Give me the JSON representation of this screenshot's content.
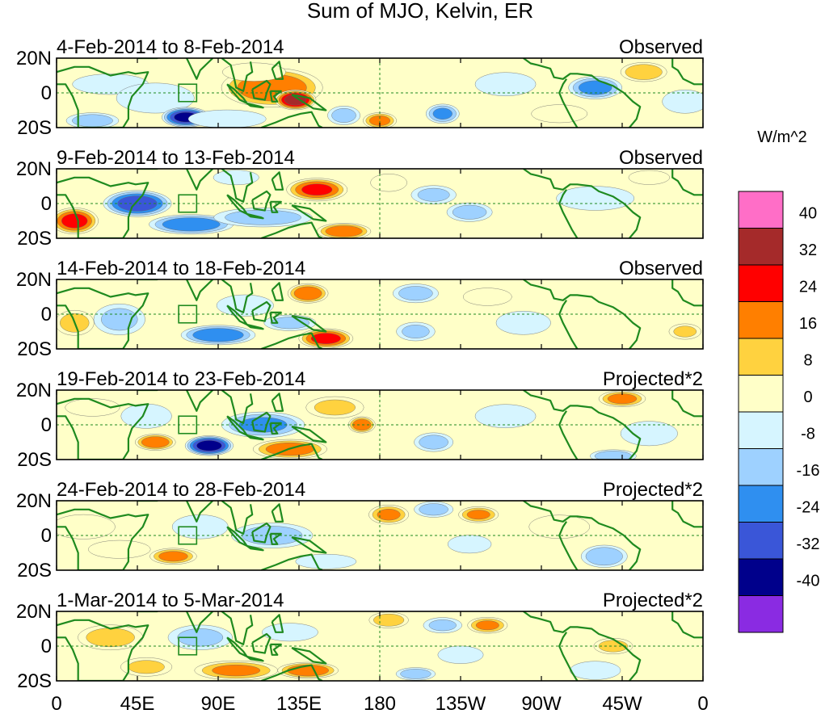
{
  "chart_data": {
    "type": "heatmap",
    "title": "Sum of MJO, Kelvin, ER",
    "units": "W/m^2",
    "x_ticks": [
      "0",
      "45E",
      "90E",
      "135E",
      "180",
      "135W",
      "90W",
      "45W",
      "0"
    ],
    "y_ticks": [
      "20N",
      "0",
      "20S"
    ],
    "lon_range": [
      0,
      360
    ],
    "lat_range": [
      -20,
      20
    ],
    "grid": false,
    "legend_position": "right",
    "colorbar": {
      "levels": [
        "40",
        "32",
        "24",
        "16",
        "8",
        "0",
        "-8",
        "-16",
        "-24",
        "-32",
        "-40"
      ],
      "colors": [
        "#ff6ec7",
        "#a52a2a",
        "#ff0000",
        "#ff7f00",
        "#ffd23f",
        "#ffffc8",
        "#d6f5ff",
        "#9ed1ff",
        "#2f8ff0",
        "#3a56d8",
        "#00008b",
        "#8a2be2"
      ]
    },
    "panels": [
      {
        "period": "4-Feb-2014 to 8-Feb-2014",
        "kind": "Observed",
        "anomalies": [
          {
            "lon": 30,
            "lat": 5,
            "value": -10,
            "rlon": 25,
            "rlat": 7
          },
          {
            "lon": 55,
            "lat": -3,
            "value": -12,
            "rlon": 25,
            "rlat": 10
          },
          {
            "lon": 72,
            "lat": -14,
            "value": -42,
            "rlon": 14,
            "rlat": 6
          },
          {
            "lon": 20,
            "lat": -16,
            "value": -20,
            "rlon": 16,
            "rlat": 5
          },
          {
            "lon": 95,
            "lat": -15,
            "value": -12,
            "rlon": 25,
            "rlat": 6
          },
          {
            "lon": 120,
            "lat": 3,
            "value": 30,
            "rlon": 30,
            "rlat": 12
          },
          {
            "lon": 133,
            "lat": -4,
            "value": 44,
            "rlon": 12,
            "rlat": 6
          },
          {
            "lon": 110,
            "lat": 12,
            "value": 14,
            "rlon": 20,
            "rlat": 6
          },
          {
            "lon": 160,
            "lat": -13,
            "value": -18,
            "rlon": 10,
            "rlat": 6
          },
          {
            "lon": 180,
            "lat": -16,
            "value": 26,
            "rlon": 10,
            "rlat": 5
          },
          {
            "lon": 215,
            "lat": -12,
            "value": -24,
            "rlon": 10,
            "rlat": 6
          },
          {
            "lon": 250,
            "lat": 5,
            "value": -10,
            "rlon": 20,
            "rlat": 8
          },
          {
            "lon": 300,
            "lat": 3,
            "value": -26,
            "rlon": 16,
            "rlat": 7
          },
          {
            "lon": 327,
            "lat": 12,
            "value": 22,
            "rlon": 14,
            "rlat": 6
          },
          {
            "lon": 280,
            "lat": -12,
            "value": 12,
            "rlon": 18,
            "rlat": 6
          },
          {
            "lon": 350,
            "lat": -5,
            "value": -10,
            "rlon": 15,
            "rlat": 8
          }
        ]
      },
      {
        "period": "9-Feb-2014 to 13-Feb-2014",
        "kind": "Observed",
        "anomalies": [
          {
            "lon": 10,
            "lat": -10,
            "value": 34,
            "rlon": 14,
            "rlat": 8
          },
          {
            "lon": 45,
            "lat": 0,
            "value": -36,
            "rlon": 20,
            "rlat": 8
          },
          {
            "lon": 75,
            "lat": -12,
            "value": -30,
            "rlon": 25,
            "rlat": 6
          },
          {
            "lon": 115,
            "lat": -8,
            "value": -20,
            "rlon": 30,
            "rlat": 6
          },
          {
            "lon": 145,
            "lat": 8,
            "value": 32,
            "rlon": 18,
            "rlat": 7
          },
          {
            "lon": 160,
            "lat": -16,
            "value": 30,
            "rlon": 16,
            "rlat": 5
          },
          {
            "lon": 185,
            "lat": 12,
            "value": 10,
            "rlon": 12,
            "rlat": 6
          },
          {
            "lon": 210,
            "lat": 5,
            "value": -16,
            "rlon": 14,
            "rlat": 6
          },
          {
            "lon": 230,
            "lat": -5,
            "value": -18,
            "rlon": 14,
            "rlat": 6
          },
          {
            "lon": 300,
            "lat": 3,
            "value": -12,
            "rlon": 25,
            "rlat": 8
          },
          {
            "lon": 330,
            "lat": 15,
            "value": 8,
            "rlon": 14,
            "rlat": 5
          },
          {
            "lon": 100,
            "lat": 15,
            "value": -10,
            "rlon": 15,
            "rlat": 5
          }
        ]
      },
      {
        "period": "14-Feb-2014 to 18-Feb-2014",
        "kind": "Observed",
        "anomalies": [
          {
            "lon": 10,
            "lat": -5,
            "value": 18,
            "rlon": 12,
            "rlat": 8
          },
          {
            "lon": 35,
            "lat": -3,
            "value": -16,
            "rlon": 16,
            "rlat": 10
          },
          {
            "lon": 90,
            "lat": -12,
            "value": -30,
            "rlon": 22,
            "rlat": 6
          },
          {
            "lon": 105,
            "lat": 5,
            "value": -14,
            "rlon": 18,
            "rlat": 7
          },
          {
            "lon": 140,
            "lat": 12,
            "value": 30,
            "rlon": 12,
            "rlat": 6
          },
          {
            "lon": 150,
            "lat": -14,
            "value": 34,
            "rlon": 16,
            "rlat": 6
          },
          {
            "lon": 130,
            "lat": -5,
            "value": -18,
            "rlon": 16,
            "rlat": 5
          },
          {
            "lon": 200,
            "lat": 12,
            "value": -18,
            "rlon": 14,
            "rlat": 6
          },
          {
            "lon": 200,
            "lat": -10,
            "value": -16,
            "rlon": 12,
            "rlat": 6
          },
          {
            "lon": 240,
            "lat": 10,
            "value": 10,
            "rlon": 16,
            "rlat": 6
          },
          {
            "lon": 260,
            "lat": -5,
            "value": -10,
            "rlon": 18,
            "rlat": 8
          },
          {
            "lon": 350,
            "lat": -10,
            "value": 16,
            "rlon": 10,
            "rlat": 5
          }
        ]
      },
      {
        "period": "19-Feb-2014 to 23-Feb-2014",
        "kind": "Projected*2",
        "anomalies": [
          {
            "lon": 20,
            "lat": 10,
            "value": 10,
            "rlon": 18,
            "rlat": 6
          },
          {
            "lon": 50,
            "lat": 5,
            "value": -14,
            "rlon": 16,
            "rlat": 8
          },
          {
            "lon": 55,
            "lat": -10,
            "value": 30,
            "rlon": 12,
            "rlat": 5
          },
          {
            "lon": 85,
            "lat": -12,
            "value": -44,
            "rlon": 14,
            "rlat": 6
          },
          {
            "lon": 115,
            "lat": 0,
            "value": -24,
            "rlon": 25,
            "rlat": 8
          },
          {
            "lon": 130,
            "lat": -14,
            "value": 28,
            "rlon": 22,
            "rlat": 6
          },
          {
            "lon": 155,
            "lat": 10,
            "value": 16,
            "rlon": 18,
            "rlat": 7
          },
          {
            "lon": 170,
            "lat": 0,
            "value": 30,
            "rlon": 8,
            "rlat": 5
          },
          {
            "lon": 210,
            "lat": -10,
            "value": -18,
            "rlon": 12,
            "rlat": 6
          },
          {
            "lon": 250,
            "lat": 5,
            "value": -10,
            "rlon": 20,
            "rlat": 8
          },
          {
            "lon": 315,
            "lat": 15,
            "value": 26,
            "rlon": 14,
            "rlat": 5
          },
          {
            "lon": 330,
            "lat": -5,
            "value": -14,
            "rlon": 18,
            "rlat": 8
          },
          {
            "lon": 310,
            "lat": -18,
            "value": -22,
            "rlon": 14,
            "rlat": 4
          }
        ]
      },
      {
        "period": "24-Feb-2014 to 28-Feb-2014",
        "kind": "Projected*2",
        "anomalies": [
          {
            "lon": 15,
            "lat": 5,
            "value": 14,
            "rlon": 20,
            "rlat": 8
          },
          {
            "lon": 35,
            "lat": -8,
            "value": 12,
            "rlon": 20,
            "rlat": 6
          },
          {
            "lon": 65,
            "lat": -12,
            "value": 26,
            "rlon": 14,
            "rlat": 5
          },
          {
            "lon": 80,
            "lat": 5,
            "value": -12,
            "rlon": 18,
            "rlat": 8
          },
          {
            "lon": 120,
            "lat": 0,
            "value": -18,
            "rlon": 25,
            "rlat": 8
          },
          {
            "lon": 185,
            "lat": 12,
            "value": 24,
            "rlon": 12,
            "rlat": 6
          },
          {
            "lon": 210,
            "lat": 15,
            "value": -18,
            "rlon": 12,
            "rlat": 5
          },
          {
            "lon": 235,
            "lat": 12,
            "value": 24,
            "rlon": 12,
            "rlat": 5
          },
          {
            "lon": 230,
            "lat": -5,
            "value": -12,
            "rlon": 14,
            "rlat": 6
          },
          {
            "lon": 280,
            "lat": 5,
            "value": 10,
            "rlon": 20,
            "rlat": 8
          },
          {
            "lon": 305,
            "lat": -12,
            "value": -22,
            "rlon": 14,
            "rlat": 7
          },
          {
            "lon": 150,
            "lat": -15,
            "value": -10,
            "rlon": 20,
            "rlat": 5
          }
        ]
      },
      {
        "period": "1-Mar-2014 to 5-Mar-2014",
        "kind": "Projected*2",
        "anomalies": [
          {
            "lon": 30,
            "lat": 5,
            "value": 18,
            "rlon": 20,
            "rlat": 8
          },
          {
            "lon": 50,
            "lat": -12,
            "value": 16,
            "rlon": 16,
            "rlat": 6
          },
          {
            "lon": 80,
            "lat": 5,
            "value": -16,
            "rlon": 20,
            "rlat": 8
          },
          {
            "lon": 100,
            "lat": -14,
            "value": 24,
            "rlon": 25,
            "rlat": 6
          },
          {
            "lon": 140,
            "lat": -14,
            "value": 30,
            "rlon": 18,
            "rlat": 5
          },
          {
            "lon": 130,
            "lat": 8,
            "value": -12,
            "rlon": 18,
            "rlat": 6
          },
          {
            "lon": 185,
            "lat": 15,
            "value": 20,
            "rlon": 12,
            "rlat": 5
          },
          {
            "lon": 200,
            "lat": -16,
            "value": -20,
            "rlon": 12,
            "rlat": 4
          },
          {
            "lon": 215,
            "lat": 12,
            "value": -16,
            "rlon": 12,
            "rlat": 5
          },
          {
            "lon": 240,
            "lat": 12,
            "value": 24,
            "rlon": 12,
            "rlat": 5
          },
          {
            "lon": 225,
            "lat": -5,
            "value": -10,
            "rlon": 15,
            "rlat": 6
          },
          {
            "lon": 310,
            "lat": 0,
            "value": 18,
            "rlon": 12,
            "rlat": 5
          },
          {
            "lon": 300,
            "lat": -14,
            "value": -14,
            "rlon": 16,
            "rlat": 6
          }
        ]
      }
    ]
  }
}
